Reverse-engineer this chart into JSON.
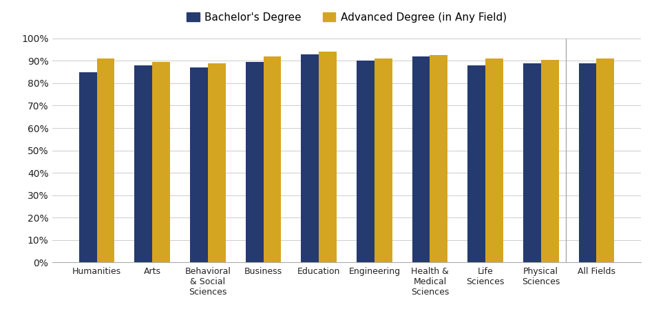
{
  "categories": [
    "Humanities",
    "Arts",
    "Behavioral\n& Social\nSciences",
    "Business",
    "Education",
    "Engineering",
    "Health &\nMedical\nSciences",
    "Life\nSciences",
    "Physical\nSciences",
    "All Fields"
  ],
  "bachelor_values": [
    0.85,
    0.88,
    0.87,
    0.895,
    0.93,
    0.9,
    0.92,
    0.88,
    0.89,
    0.89
  ],
  "advanced_values": [
    0.91,
    0.895,
    0.89,
    0.92,
    0.94,
    0.91,
    0.925,
    0.91,
    0.905,
    0.91
  ],
  "bachelor_color": "#253A6E",
  "advanced_color": "#D4A520",
  "legend_bachelor": "Bachelor's Degree",
  "legend_advanced": "Advanced Degree (in Any Field)",
  "ylim": [
    0,
    1.0
  ],
  "yticks": [
    0,
    0.1,
    0.2,
    0.3,
    0.4,
    0.5,
    0.6,
    0.7,
    0.8,
    0.9,
    1.0
  ],
  "ytick_labels": [
    "0%",
    "10%",
    "20%",
    "30%",
    "40%",
    "50%",
    "60%",
    "70%",
    "80%",
    "90%",
    "100%"
  ],
  "bar_width": 0.32,
  "background_color": "#FFFFFF",
  "grid_color": "#CCCCCC",
  "grid_linewidth": 0.7
}
